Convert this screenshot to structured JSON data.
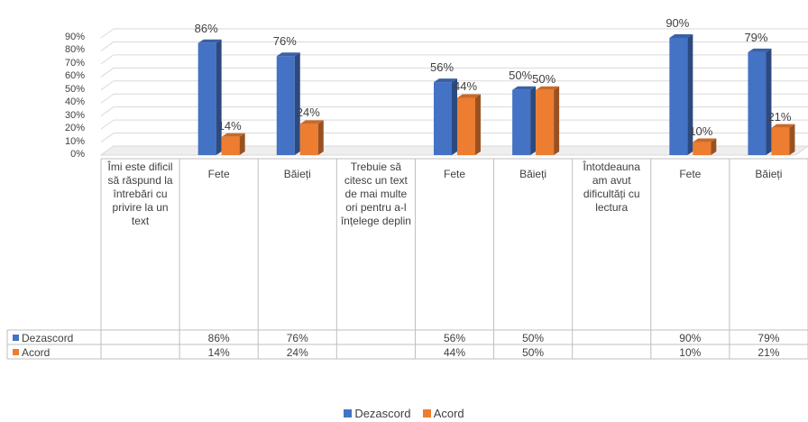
{
  "chart_data": {
    "type": "bar",
    "categories": [
      "Îmi este dificil să răspund la întrebări cu privire la un text",
      "Fete",
      "Băieți",
      "Trebuie să citesc un text de mai multe ori pentru a-l înțelege deplin",
      "Fete",
      "Băieți",
      "Întotdeauna am avut dificultăți cu lectura",
      "Fete",
      "Băieți"
    ],
    "series": [
      {
        "name": "Dezascord",
        "color": "#4472C4",
        "values": [
          null,
          86,
          76,
          null,
          56,
          50,
          null,
          90,
          79
        ],
        "labels": [
          "",
          "86%",
          "76%",
          "",
          "56%",
          "50%",
          "",
          "90%",
          "79%"
        ]
      },
      {
        "name": "Acord",
        "color": "#ED7D31",
        "values": [
          null,
          14,
          24,
          null,
          44,
          50,
          null,
          10,
          21
        ],
        "labels": [
          "",
          "14%",
          "24%",
          "",
          "44%",
          "50%",
          "",
          "10%",
          "21%"
        ]
      }
    ],
    "yticks": [
      "0%",
      "10%",
      "20%",
      "30%",
      "40%",
      "50%",
      "60%",
      "70%",
      "80%",
      "90%"
    ],
    "ylim": [
      0,
      90
    ],
    "legend": "bottom",
    "grid": true
  }
}
